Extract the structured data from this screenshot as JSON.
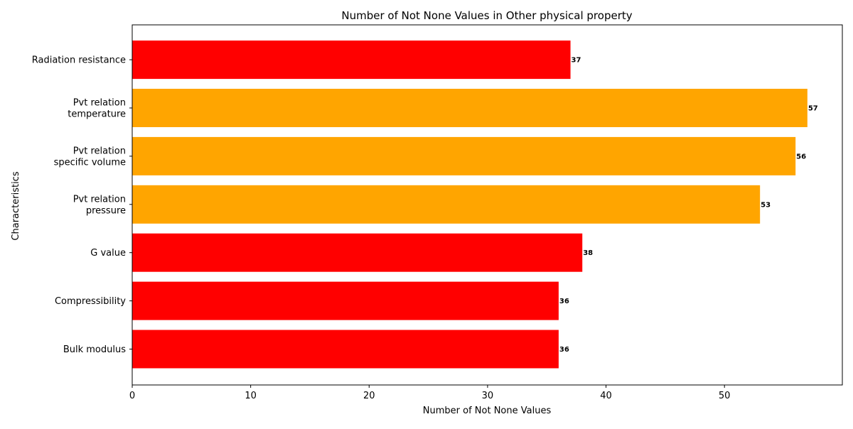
{
  "chart_data": {
    "type": "bar",
    "orientation": "horizontal",
    "title": "Number of Not None Values in Other physical property",
    "xlabel": "Number of Not None Values",
    "ylabel": "Characteristics",
    "xlim": [
      0,
      60
    ],
    "xticks": [
      0,
      10,
      20,
      30,
      40,
      50
    ],
    "grid": false,
    "categories": [
      [
        "Bulk modulus"
      ],
      [
        "Compressibility"
      ],
      [
        "G value"
      ],
      [
        "Pvt relation",
        "pressure"
      ],
      [
        "Pvt relation",
        "specific volume"
      ],
      [
        "Pvt relation",
        "temperature"
      ],
      [
        "Radiation resistance"
      ]
    ],
    "values": [
      36,
      36,
      38,
      53,
      56,
      57,
      37
    ],
    "colors": [
      "#ff0000",
      "#ff0000",
      "#ff0000",
      "#ffa500",
      "#ffa500",
      "#ffa500",
      "#ff0000"
    ]
  }
}
